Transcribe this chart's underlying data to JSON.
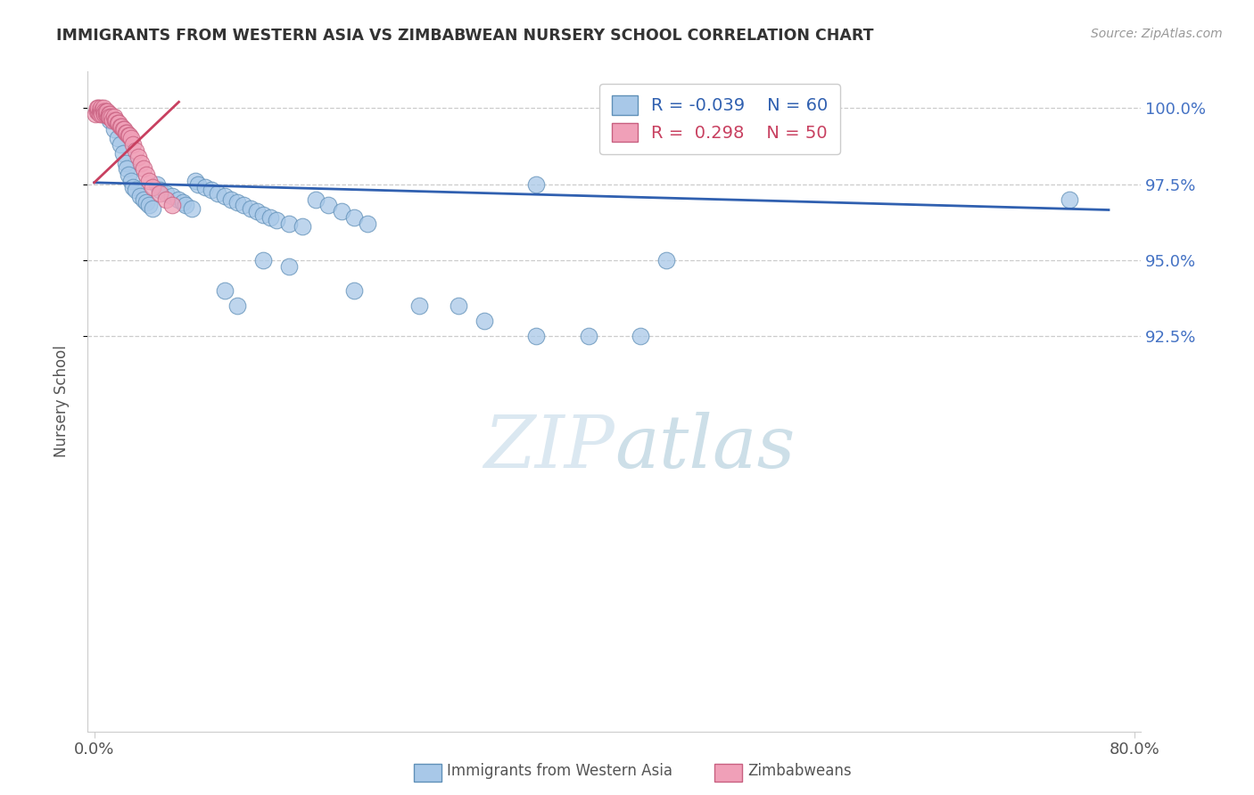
{
  "title": "IMMIGRANTS FROM WESTERN ASIA VS ZIMBABWEAN NURSERY SCHOOL CORRELATION CHART",
  "source": "Source: ZipAtlas.com",
  "ylabel": "Nursery School",
  "xlim": [
    -0.005,
    0.805
  ],
  "ylim": [
    0.795,
    1.012
  ],
  "ytick_vals": [
    0.925,
    0.95,
    0.975,
    1.0
  ],
  "ytick_labels": [
    "92.5%",
    "95.0%",
    "97.5%",
    "100.0%"
  ],
  "xtick_vals": [
    0.0,
    0.8
  ],
  "xtick_labels": [
    "0.0%",
    "80.0%"
  ],
  "blue_R": -0.039,
  "blue_N": 60,
  "pink_R": 0.298,
  "pink_N": 50,
  "blue_color": "#a8c8e8",
  "blue_edge": "#6090b8",
  "pink_color": "#f0a0b8",
  "pink_edge": "#c86080",
  "blue_line_color": "#3060b0",
  "pink_line_color": "#c84060",
  "legend_label_blue": "Immigrants from Western Asia",
  "legend_label_pink": "Zimbabweans",
  "watermark_zip": "ZIP",
  "watermark_atlas": "atlas",
  "grid_color": "#cccccc",
  "title_color": "#333333",
  "axis_color": "#555555",
  "right_tick_color": "#4472c4",
  "blue_x": [
    0.008,
    0.012,
    0.015,
    0.018,
    0.02,
    0.022,
    0.024,
    0.025,
    0.026,
    0.028,
    0.03,
    0.032,
    0.035,
    0.038,
    0.04,
    0.042,
    0.045,
    0.048,
    0.05,
    0.055,
    0.06,
    0.065,
    0.068,
    0.07,
    0.075,
    0.078,
    0.08,
    0.085,
    0.09,
    0.095,
    0.1,
    0.105,
    0.11,
    0.115,
    0.12,
    0.125,
    0.13,
    0.135,
    0.14,
    0.15,
    0.16,
    0.17,
    0.18,
    0.19,
    0.2,
    0.21,
    0.13,
    0.15,
    0.34,
    0.44,
    0.1,
    0.11,
    0.2,
    0.25,
    0.28,
    0.3,
    0.34,
    0.38,
    0.42,
    0.75
  ],
  "blue_y": [
    0.998,
    0.996,
    0.993,
    0.99,
    0.988,
    0.985,
    0.982,
    0.98,
    0.978,
    0.976,
    0.974,
    0.973,
    0.971,
    0.97,
    0.969,
    0.968,
    0.967,
    0.975,
    0.973,
    0.972,
    0.971,
    0.97,
    0.969,
    0.968,
    0.967,
    0.976,
    0.975,
    0.974,
    0.973,
    0.972,
    0.971,
    0.97,
    0.969,
    0.968,
    0.967,
    0.966,
    0.965,
    0.964,
    0.963,
    0.962,
    0.961,
    0.97,
    0.968,
    0.966,
    0.964,
    0.962,
    0.95,
    0.948,
    0.975,
    0.95,
    0.94,
    0.935,
    0.94,
    0.935,
    0.935,
    0.93,
    0.925,
    0.925,
    0.925,
    0.97
  ],
  "pink_x": [
    0.001,
    0.002,
    0.002,
    0.003,
    0.003,
    0.004,
    0.004,
    0.005,
    0.005,
    0.006,
    0.006,
    0.007,
    0.007,
    0.008,
    0.008,
    0.009,
    0.009,
    0.01,
    0.01,
    0.011,
    0.011,
    0.012,
    0.012,
    0.013,
    0.014,
    0.015,
    0.016,
    0.017,
    0.018,
    0.019,
    0.02,
    0.021,
    0.022,
    0.023,
    0.024,
    0.025,
    0.026,
    0.027,
    0.028,
    0.03,
    0.032,
    0.034,
    0.036,
    0.038,
    0.04,
    0.042,
    0.045,
    0.05,
    0.055,
    0.06
  ],
  "pink_y": [
    0.998,
    0.999,
    1.0,
    0.999,
    1.0,
    0.999,
    0.998,
    0.999,
    1.0,
    0.999,
    0.998,
    0.999,
    1.0,
    0.999,
    0.998,
    0.998,
    0.999,
    0.998,
    0.999,
    0.998,
    0.997,
    0.998,
    0.997,
    0.997,
    0.996,
    0.997,
    0.996,
    0.996,
    0.995,
    0.995,
    0.994,
    0.994,
    0.993,
    0.993,
    0.992,
    0.992,
    0.991,
    0.991,
    0.99,
    0.988,
    0.986,
    0.984,
    0.982,
    0.98,
    0.978,
    0.976,
    0.974,
    0.972,
    0.97,
    0.968
  ],
  "blue_line_x": [
    0.0,
    0.78
  ],
  "blue_line_y": [
    0.9755,
    0.9665
  ],
  "pink_line_x": [
    0.0,
    0.065
  ],
  "pink_line_y": [
    0.9755,
    1.002
  ]
}
